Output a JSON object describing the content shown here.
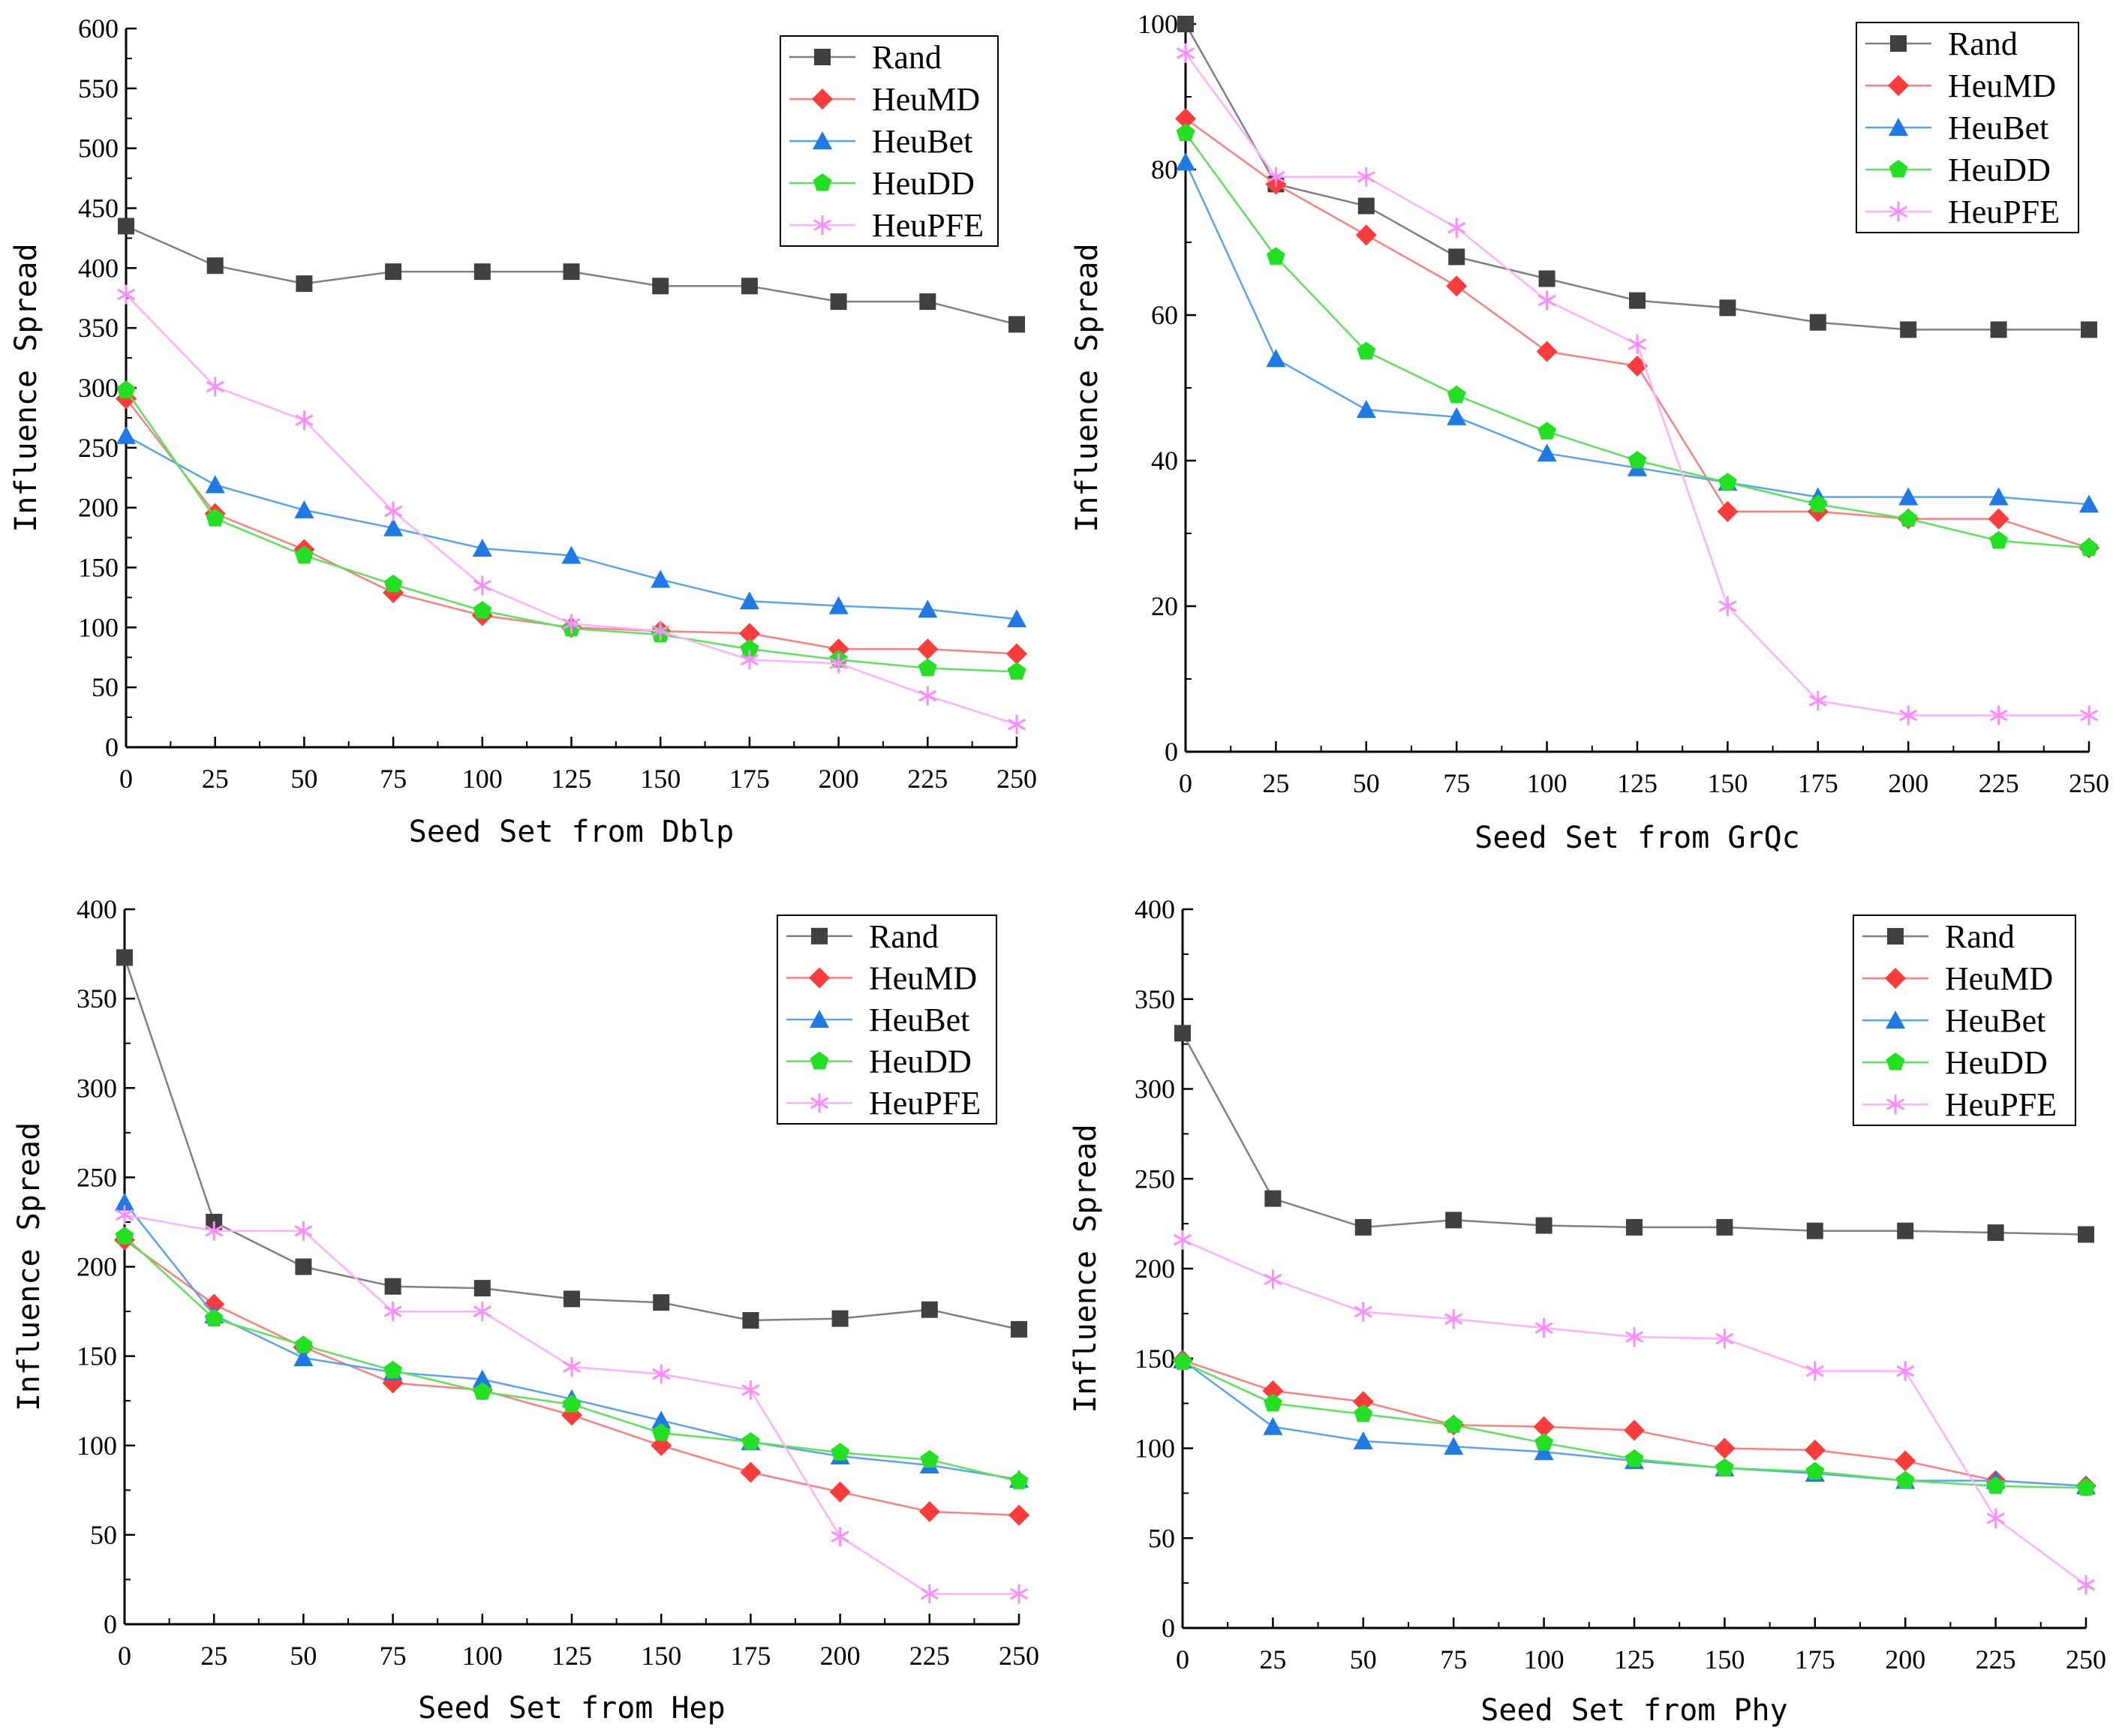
{
  "chart_data": [
    {
      "type": "line",
      "xlabel": "Seed Set from Dblp",
      "ylabel": "Influence Spread",
      "x": [
        0,
        25,
        50,
        75,
        100,
        125,
        150,
        175,
        200,
        225,
        250
      ],
      "xlim": [
        0,
        250
      ],
      "ylim": [
        0,
        600
      ],
      "yticks": [
        0,
        50,
        100,
        150,
        200,
        250,
        300,
        350,
        400,
        450,
        500,
        550,
        600
      ],
      "xticks": [
        0,
        25,
        50,
        75,
        100,
        125,
        150,
        175,
        200,
        225,
        250
      ],
      "legend_position": "top-right",
      "series": [
        {
          "name": "Rand",
          "values": [
            435,
            402,
            387,
            397,
            397,
            397,
            385,
            385,
            372,
            372,
            353
          ]
        },
        {
          "name": "HeuMD",
          "values": [
            291,
            195,
            165,
            129,
            110,
            100,
            97,
            95,
            82,
            82,
            78
          ]
        },
        {
          "name": "HeuBet",
          "values": [
            260,
            219,
            198,
            183,
            166,
            160,
            140,
            122,
            118,
            115,
            107
          ]
        },
        {
          "name": "HeuDD",
          "values": [
            298,
            191,
            160,
            136,
            114,
            99,
            94,
            82,
            73,
            66,
            63
          ]
        },
        {
          "name": "HeuPFE",
          "values": [
            378,
            301,
            273,
            197,
            135,
            103,
            97,
            73,
            70,
            43,
            19
          ]
        }
      ]
    },
    {
      "type": "line",
      "xlabel": "Seed Set from GrQc",
      "ylabel": "Influence Spread",
      "x": [
        0,
        25,
        50,
        75,
        100,
        125,
        150,
        175,
        200,
        225,
        250
      ],
      "xlim": [
        0,
        250
      ],
      "ylim": [
        0,
        100
      ],
      "yticks": [
        0,
        20,
        40,
        60,
        80,
        100
      ],
      "xticks": [
        0,
        25,
        50,
        75,
        100,
        125,
        150,
        175,
        200,
        225,
        250
      ],
      "legend_position": "top-right",
      "series": [
        {
          "name": "Rand",
          "values": [
            100,
            78,
            75,
            68,
            65,
            62,
            61,
            59,
            58,
            58,
            58
          ]
        },
        {
          "name": "HeuMD",
          "values": [
            87,
            78,
            71,
            64,
            55,
            53,
            33,
            33,
            32,
            32,
            28
          ]
        },
        {
          "name": "HeuBet",
          "values": [
            81,
            54,
            47,
            46,
            41,
            39,
            37,
            35,
            35,
            35,
            34
          ]
        },
        {
          "name": "HeuDD",
          "values": [
            85,
            68,
            55,
            49,
            44,
            40,
            37,
            34,
            32,
            29,
            28
          ]
        },
        {
          "name": "HeuPFE",
          "values": [
            96,
            79,
            79,
            72,
            62,
            56,
            20,
            7,
            5,
            5,
            5
          ]
        }
      ]
    },
    {
      "type": "line",
      "xlabel": "Seed Set from Hep",
      "ylabel": "Influence Spread",
      "x": [
        0,
        25,
        50,
        75,
        100,
        125,
        150,
        175,
        200,
        225,
        250
      ],
      "xlim": [
        0,
        250
      ],
      "ylim": [
        0,
        400
      ],
      "yticks": [
        0,
        50,
        100,
        150,
        200,
        250,
        300,
        350,
        400
      ],
      "xticks": [
        0,
        25,
        50,
        75,
        100,
        125,
        150,
        175,
        200,
        225,
        250
      ],
      "legend_position": "top-right",
      "series": [
        {
          "name": "Rand",
          "values": [
            373,
            225,
            200,
            189,
            188,
            182,
            180,
            170,
            171,
            176,
            165
          ]
        },
        {
          "name": "HeuMD",
          "values": [
            215,
            179,
            155,
            135,
            131,
            117,
            100,
            85,
            74,
            63,
            61
          ]
        },
        {
          "name": "HeuBet",
          "values": [
            236,
            173,
            149,
            141,
            137,
            126,
            114,
            102,
            94,
            89,
            81
          ]
        },
        {
          "name": "HeuDD",
          "values": [
            217,
            171,
            156,
            142,
            130,
            123,
            107,
            102,
            96,
            92,
            80
          ]
        },
        {
          "name": "HeuPFE",
          "values": [
            229,
            220,
            220,
            175,
            175,
            144,
            140,
            131,
            49,
            17,
            17
          ]
        }
      ]
    },
    {
      "type": "line",
      "xlabel": "Seed Set from Phy",
      "ylabel": "Influence Spread",
      "x": [
        0,
        25,
        50,
        75,
        100,
        125,
        150,
        175,
        200,
        225,
        250
      ],
      "xlim": [
        0,
        250
      ],
      "ylim": [
        0,
        400
      ],
      "yticks": [
        0,
        50,
        100,
        150,
        200,
        250,
        300,
        350,
        400
      ],
      "xticks": [
        0,
        25,
        50,
        75,
        100,
        125,
        150,
        175,
        200,
        225,
        250
      ],
      "legend_position": "top-right",
      "series": [
        {
          "name": "Rand",
          "values": [
            331,
            239,
            223,
            227,
            224,
            223,
            223,
            221,
            221,
            220,
            219
          ]
        },
        {
          "name": "HeuMD",
          "values": [
            149,
            132,
            126,
            113,
            112,
            110,
            100,
            99,
            93,
            82,
            79
          ]
        },
        {
          "name": "HeuBet",
          "values": [
            149,
            112,
            104,
            101,
            98,
            93,
            89,
            86,
            82,
            82,
            79
          ]
        },
        {
          "name": "HeuDD",
          "values": [
            148,
            125,
            119,
            113,
            103,
            94,
            89,
            87,
            82,
            79,
            78
          ]
        },
        {
          "name": "HeuPFE",
          "values": [
            216,
            194,
            176,
            172,
            167,
            162,
            161,
            143,
            143,
            61,
            24
          ]
        }
      ]
    }
  ],
  "styles": {
    "series_colors": [
      "#404040",
      "#ff3b3b",
      "#1f7ae8",
      "#22e022",
      "#ff8cff"
    ],
    "series_line_colors": [
      "#808080",
      "#ff7f7f",
      "#5ba3f0",
      "#5ce35c",
      "#ffb0ff"
    ],
    "markers": [
      "square",
      "diamond",
      "triangle",
      "pentagon",
      "asterisk"
    ]
  }
}
